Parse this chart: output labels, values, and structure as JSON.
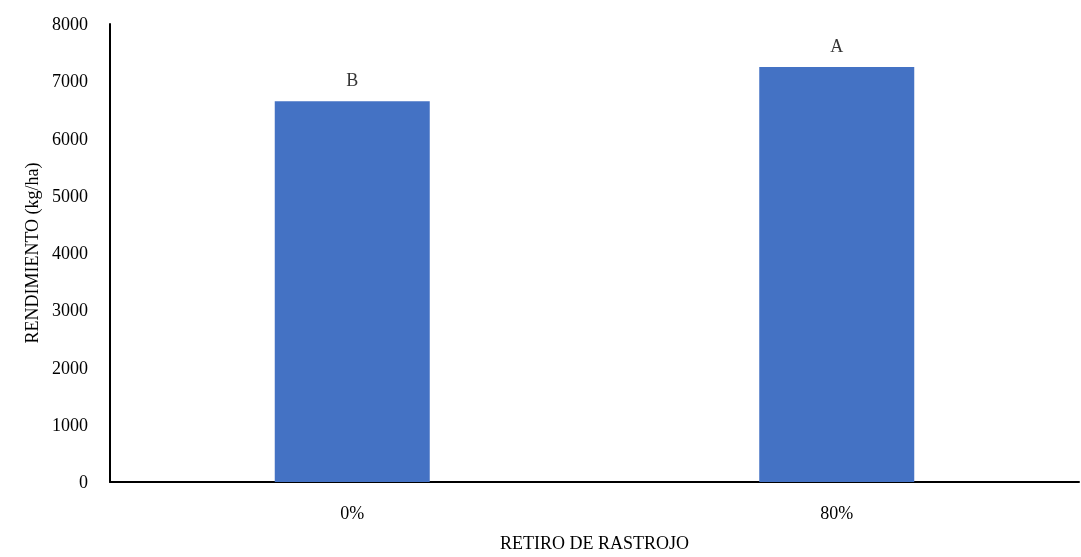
{
  "chart_data": {
    "type": "bar",
    "xlabel": "RETIRO DE RASTROJO",
    "ylabel": "RENDIMIENTO (kg/ha)",
    "categories": [
      "0%",
      "80%"
    ],
    "values": [
      6650,
      7250
    ],
    "color": "#4472c4",
    "ylim": [
      0,
      8000
    ],
    "yticks": [
      0,
      1000,
      2000,
      3000,
      4000,
      5000,
      6000,
      7000,
      8000
    ],
    "grid": false,
    "annotations": [
      {
        "text": "B",
        "x": "0%",
        "y": 6650
      },
      {
        "text": "A",
        "x": "80%",
        "y": 7250
      }
    ]
  }
}
